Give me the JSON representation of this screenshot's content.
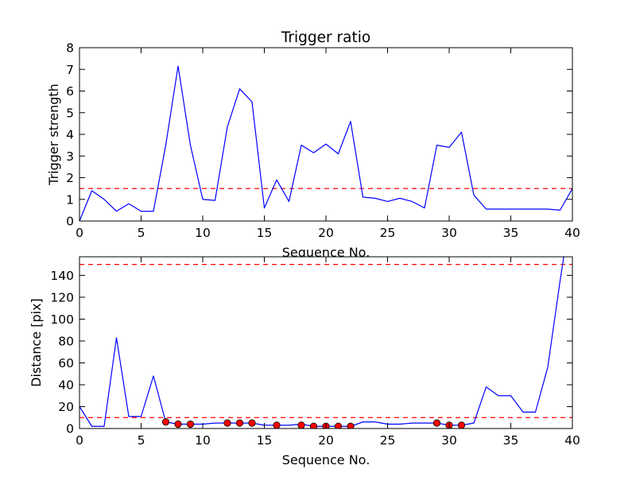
{
  "chart_data": [
    {
      "type": "line",
      "title": "Trigger ratio",
      "xlabel": "Sequence No.",
      "ylabel": "Trigger strength",
      "xlim": [
        0,
        40
      ],
      "ylim": [
        0,
        8
      ],
      "xticks": [
        0,
        5,
        10,
        15,
        20,
        25,
        30,
        35,
        40
      ],
      "yticks": [
        0,
        1,
        2,
        3,
        4,
        5,
        6,
        7,
        8
      ],
      "grid": false,
      "series": [
        {
          "color": "#0000ff",
          "style": "solid",
          "x": [
            0,
            1,
            2,
            3,
            4,
            5,
            6,
            7,
            8,
            9,
            10,
            11,
            12,
            13,
            14,
            15,
            16,
            17,
            18,
            19,
            20,
            21,
            22,
            23,
            24,
            25,
            26,
            27,
            28,
            29,
            30,
            31,
            32,
            33,
            34,
            35,
            36,
            37,
            38,
            39,
            40
          ],
          "y": [
            0.0,
            1.4,
            1.0,
            0.45,
            0.8,
            0.45,
            0.45,
            3.5,
            7.15,
            3.5,
            1.0,
            0.95,
            4.35,
            6.1,
            5.5,
            0.6,
            1.9,
            0.9,
            3.5,
            3.15,
            3.55,
            3.1,
            4.6,
            1.1,
            1.05,
            0.9,
            1.05,
            0.9,
            0.6,
            3.5,
            3.4,
            4.1,
            1.2,
            0.55,
            0.55,
            0.55,
            0.55,
            0.55,
            0.55,
            0.5,
            1.5
          ]
        }
      ],
      "reference_lines": [
        {
          "axis": "y",
          "value": 1.5,
          "color": "#ff0000",
          "style": "dashed"
        }
      ]
    },
    {
      "type": "line",
      "xlabel": "Sequence No.",
      "ylabel": "Distance [pix]",
      "xlim": [
        0,
        40
      ],
      "ylim": [
        0,
        157
      ],
      "xticks": [
        0,
        5,
        10,
        15,
        20,
        25,
        30,
        35,
        40
      ],
      "yticks": [
        0,
        20,
        40,
        60,
        80,
        100,
        120,
        140
      ],
      "grid": false,
      "series": [
        {
          "color": "#0000ff",
          "style": "solid",
          "x": [
            0,
            1,
            2,
            3,
            4,
            5,
            6,
            7,
            8,
            9,
            10,
            11,
            12,
            13,
            14,
            15,
            16,
            17,
            18,
            19,
            20,
            21,
            22,
            23,
            24,
            25,
            26,
            27,
            28,
            29,
            30,
            31,
            32,
            33,
            34,
            35,
            36,
            37,
            38,
            39,
            39.3
          ],
          "y": [
            20,
            2,
            2,
            83,
            11,
            11,
            48,
            6,
            4,
            4,
            4,
            5,
            5,
            5,
            5,
            3,
            3,
            3,
            4,
            2,
            2,
            2,
            2,
            6,
            6,
            4,
            4,
            5,
            5,
            5,
            3,
            3,
            5,
            38,
            30,
            30,
            15,
            15,
            56,
            135,
            157
          ]
        },
        {
          "color": "#ff0000",
          "marker": "circle",
          "style": "none",
          "x": [
            7,
            8,
            9,
            12,
            13,
            14,
            16,
            18,
            19,
            20,
            21,
            22,
            29,
            30,
            31
          ],
          "y": [
            6,
            4,
            4,
            5,
            5,
            5,
            3,
            3,
            2,
            2,
            2,
            2,
            5,
            3,
            3
          ]
        }
      ],
      "reference_lines": [
        {
          "axis": "y",
          "value": 10,
          "color": "#ff0000",
          "style": "dashed"
        },
        {
          "axis": "y",
          "value": 150,
          "color": "#ff0000",
          "style": "dashed"
        }
      ]
    }
  ]
}
